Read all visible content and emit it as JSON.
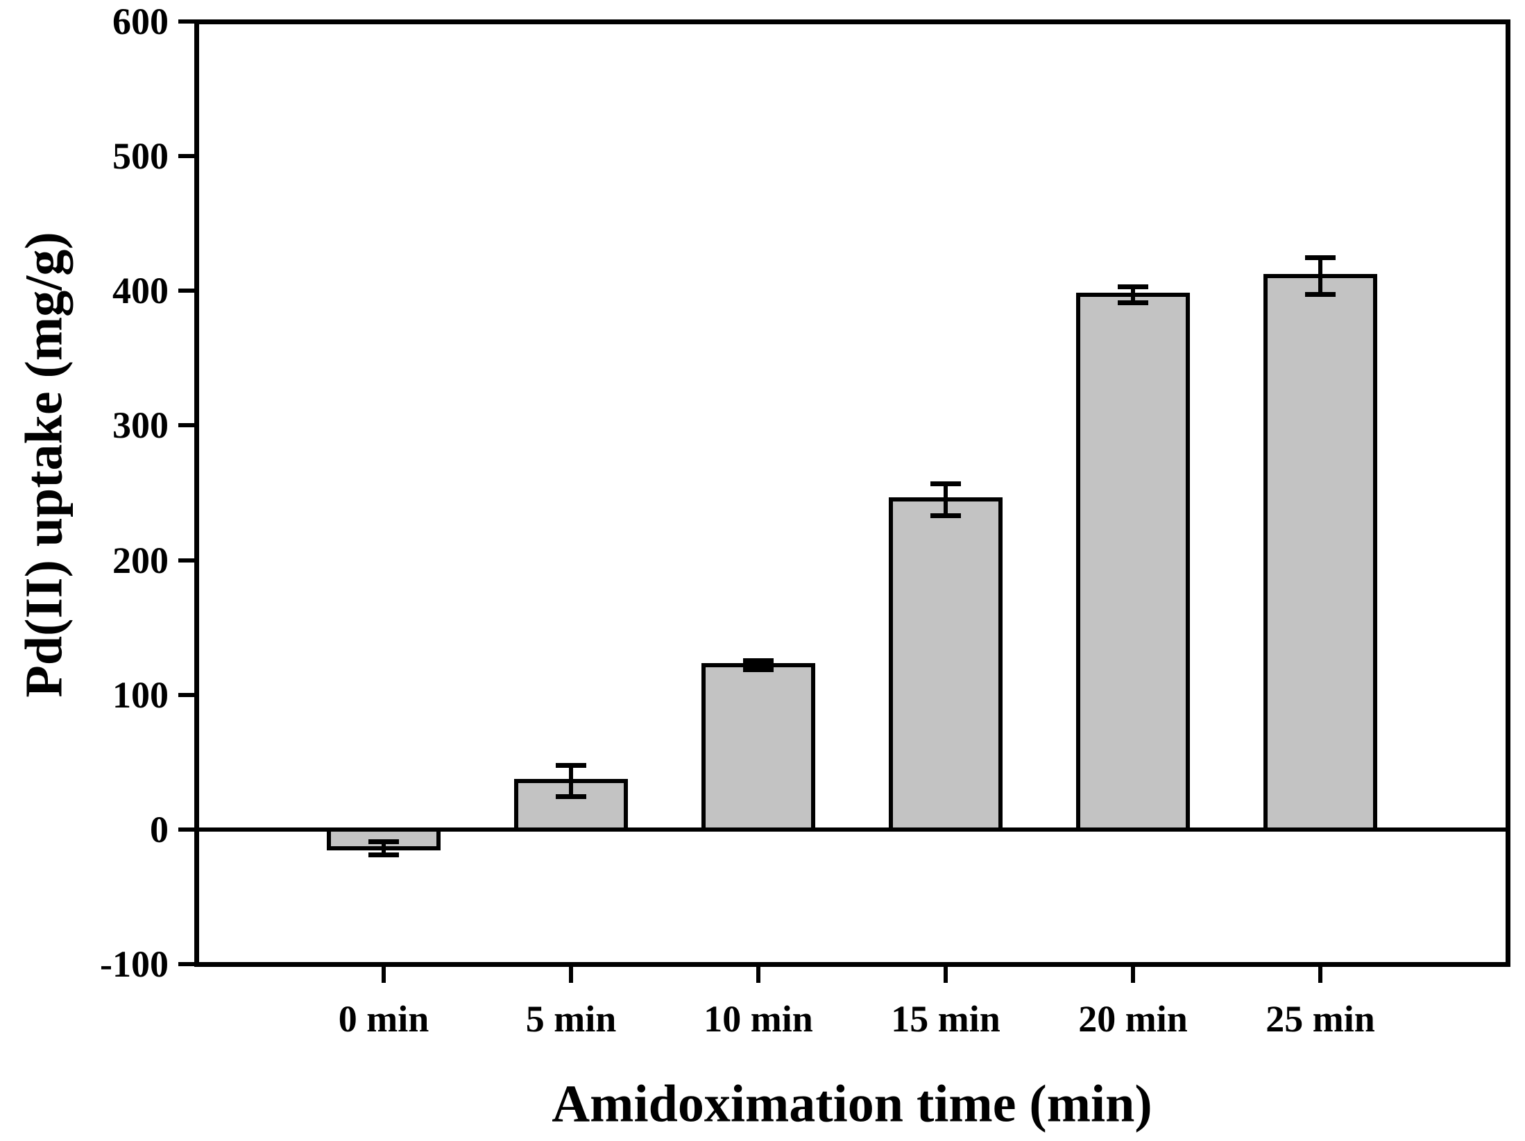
{
  "chart_data": {
    "type": "bar",
    "title": "",
    "xlabel": "Amidoximation time (min)",
    "ylabel": "Pd(II) uptake (mg/g)",
    "categories": [
      "0 min",
      "5 min",
      "10 min",
      "15 min",
      "20 min",
      "25 min"
    ],
    "values": [
      -14,
      36,
      122,
      245,
      397,
      411
    ],
    "error_bars": [
      5,
      12,
      3.5,
      12,
      6,
      14
    ],
    "ylim": [
      -100,
      600
    ],
    "yticks": [
      600,
      500,
      400,
      300,
      200,
      100,
      0,
      -100
    ],
    "ytick_labels": [
      "600",
      "500",
      "400",
      "300",
      "200",
      "100",
      "0",
      "-100"
    ],
    "grid": false,
    "legend": null,
    "zero_baseline": true,
    "bar_fill_color": "#C3C3C3",
    "bar_border_color": "#000000",
    "axis_color": "#000000",
    "background_color": "#FFFFFF"
  }
}
